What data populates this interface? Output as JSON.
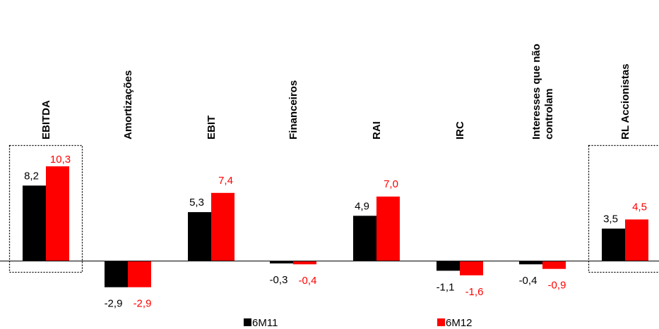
{
  "colors": {
    "6M11": "#000000",
    "6M12": "#ff0000"
  },
  "chart_data": {
    "type": "bar",
    "title": "",
    "xlabel": "",
    "ylabel": "",
    "categories": [
      [
        "EBITDA"
      ],
      [
        "Amortizações"
      ],
      [
        "EBIT"
      ],
      [
        "Financeiros"
      ],
      [
        "RAI"
      ],
      [
        "IRC"
      ],
      [
        "Interesses que não",
        "controlam"
      ],
      [
        "RL Accionistas"
      ]
    ],
    "series": [
      {
        "name": "6M11",
        "values": [
          8.2,
          -2.9,
          5.3,
          -0.3,
          4.9,
          -1.1,
          -0.4,
          3.5
        ],
        "labels": [
          "8,2",
          "-2,9",
          "5,3",
          "-0,3",
          "4,9",
          "-1,1",
          "-0,4",
          "3,5"
        ]
      },
      {
        "name": "6M12",
        "values": [
          10.3,
          -2.9,
          7.4,
          -0.4,
          7.0,
          -1.6,
          -0.9,
          4.5
        ],
        "labels": [
          "10,3",
          "-2,9",
          "7,4",
          "-0,4",
          "7,0",
          "-1,6",
          "-0,9",
          "4,5"
        ]
      }
    ],
    "highlighted_categories": [
      "EBITDA",
      "RL Accionistas"
    ],
    "legend": [
      "6M11",
      "6M12"
    ],
    "legend_position": "bottom",
    "grid": false
  }
}
